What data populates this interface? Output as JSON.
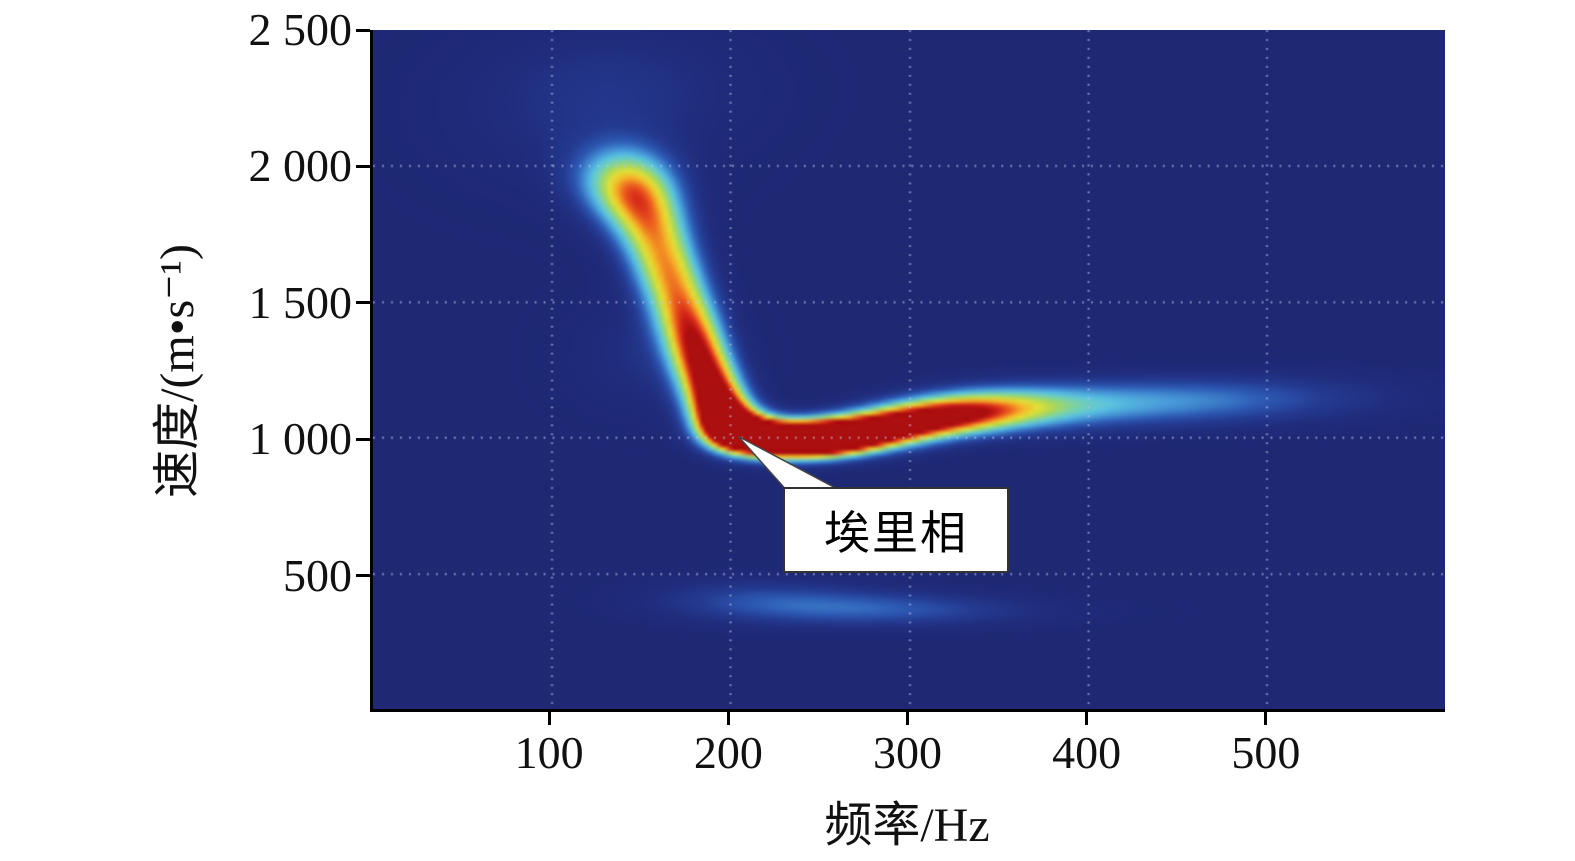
{
  "figure": {
    "background_color": "#ffffff",
    "plot_background_color": "#1f2a78",
    "x_axis_title": "频率/Hz",
    "y_axis_title": "速度/(m•s⁻¹)"
  },
  "chart_data": {
    "type": "heatmap",
    "title": "",
    "xlabel": "频率/Hz",
    "ylabel": "速度/(m•s⁻¹)",
    "x_range": [
      0,
      600
    ],
    "y_range": [
      0,
      2500
    ],
    "grid": true,
    "grid_style": "dotted",
    "grid_color": "rgba(190,198,240,0.6)",
    "x_ticks": [
      {
        "value": 100,
        "label": "100"
      },
      {
        "value": 200,
        "label": "200"
      },
      {
        "value": 300,
        "label": "300"
      },
      {
        "value": 400,
        "label": "400"
      },
      {
        "value": 500,
        "label": "500"
      }
    ],
    "y_ticks": [
      {
        "value": 2500,
        "label": "2 500"
      },
      {
        "value": 2000,
        "label": "2 000"
      },
      {
        "value": 1500,
        "label": "1 500"
      },
      {
        "value": 1000,
        "label": "1 000"
      },
      {
        "value": 500,
        "label": "500"
      }
    ],
    "annotation": {
      "label": "埃里相",
      "target": {
        "f": 204,
        "v": 1010
      }
    },
    "dispersion_curve": [
      {
        "f": 140,
        "v": 1950
      },
      {
        "f": 160,
        "v": 1700
      },
      {
        "f": 180,
        "v": 1350
      },
      {
        "f": 195,
        "v": 1100
      },
      {
        "f": 220,
        "v": 1000
      },
      {
        "f": 250,
        "v": 990
      },
      {
        "f": 280,
        "v": 1020
      },
      {
        "f": 320,
        "v": 1080
      },
      {
        "f": 360,
        "v": 1110
      },
      {
        "f": 440,
        "v": 1130
      }
    ],
    "airy_phase_point": {
      "f": 220,
      "v": 1000
    },
    "colormap": [
      {
        "t": 0.0,
        "rgb": [
          30,
          40,
          115
        ]
      },
      {
        "t": 0.1,
        "rgb": [
          32,
          45,
          125
        ]
      },
      {
        "t": 0.2,
        "rgb": [
          36,
          58,
          145
        ]
      },
      {
        "t": 0.3,
        "rgb": [
          45,
          90,
          180
        ]
      },
      {
        "t": 0.4,
        "rgb": [
          70,
          150,
          215
        ]
      },
      {
        "t": 0.48,
        "rgb": [
          90,
          195,
          225
        ]
      },
      {
        "t": 0.56,
        "rgb": [
          120,
          210,
          170
        ]
      },
      {
        "t": 0.64,
        "rgb": [
          170,
          215,
          90
        ]
      },
      {
        "t": 0.72,
        "rgb": [
          225,
          225,
          55
        ]
      },
      {
        "t": 0.8,
        "rgb": [
          245,
          180,
          40
        ]
      },
      {
        "t": 0.88,
        "rgb": [
          235,
          90,
          30
        ]
      },
      {
        "t": 0.94,
        "rgb": [
          210,
          35,
          25
        ]
      },
      {
        "t": 1.0,
        "rgb": [
          172,
          15,
          15
        ]
      }
    ],
    "energy_blobs": [
      {
        "f": 138,
        "v": 1960,
        "amp": 0.42,
        "sf": 20,
        "sv": 95
      },
      {
        "f": 148,
        "v": 1870,
        "amp": 0.5,
        "sf": 17,
        "sv": 95
      },
      {
        "f": 158,
        "v": 1740,
        "amp": 0.52,
        "sf": 15,
        "sv": 95
      },
      {
        "f": 166,
        "v": 1600,
        "amp": 0.54,
        "sf": 14,
        "sv": 90
      },
      {
        "f": 174,
        "v": 1460,
        "amp": 0.58,
        "sf": 13,
        "sv": 88
      },
      {
        "f": 181,
        "v": 1330,
        "amp": 0.64,
        "sf": 12,
        "sv": 82
      },
      {
        "f": 188,
        "v": 1210,
        "amp": 0.72,
        "sf": 12,
        "sv": 76
      },
      {
        "f": 194,
        "v": 1110,
        "amp": 0.8,
        "sf": 12,
        "sv": 66
      },
      {
        "f": 201,
        "v": 1040,
        "amp": 0.92,
        "sf": 13,
        "sv": 56
      },
      {
        "f": 215,
        "v": 1000,
        "amp": 1.0,
        "sf": 16,
        "sv": 48
      },
      {
        "f": 235,
        "v": 988,
        "amp": 1.0,
        "sf": 18,
        "sv": 46
      },
      {
        "f": 255,
        "v": 995,
        "amp": 0.92,
        "sf": 18,
        "sv": 46
      },
      {
        "f": 275,
        "v": 1015,
        "amp": 0.72,
        "sf": 20,
        "sv": 48
      },
      {
        "f": 295,
        "v": 1045,
        "amp": 0.58,
        "sf": 22,
        "sv": 50
      },
      {
        "f": 315,
        "v": 1075,
        "amp": 0.48,
        "sf": 24,
        "sv": 52
      },
      {
        "f": 335,
        "v": 1095,
        "amp": 0.4,
        "sf": 26,
        "sv": 56
      },
      {
        "f": 360,
        "v": 1110,
        "amp": 0.32,
        "sf": 30,
        "sv": 60
      },
      {
        "f": 395,
        "v": 1120,
        "amp": 0.24,
        "sf": 40,
        "sv": 64
      },
      {
        "f": 440,
        "v": 1130,
        "amp": 0.18,
        "sf": 45,
        "sv": 66
      },
      {
        "f": 485,
        "v": 1140,
        "amp": 0.14,
        "sf": 45,
        "sv": 68
      },
      {
        "f": 535,
        "v": 1150,
        "amp": 0.1,
        "sf": 55,
        "sv": 70
      },
      {
        "f": 110,
        "v": 2200,
        "amp": 0.1,
        "sf": 55,
        "sv": 220
      },
      {
        "f": 150,
        "v": 2300,
        "amp": 0.08,
        "sf": 50,
        "sv": 160
      },
      {
        "f": 155,
        "v": 1300,
        "amp": 0.12,
        "sf": 32,
        "sv": 150
      },
      {
        "f": 250,
        "v": 380,
        "amp": 0.2,
        "sf": 55,
        "sv": 55
      },
      {
        "f": 310,
        "v": 360,
        "amp": 0.16,
        "sf": 60,
        "sv": 45
      },
      {
        "f": 205,
        "v": 420,
        "amp": 0.12,
        "sf": 40,
        "sv": 60
      }
    ]
  }
}
